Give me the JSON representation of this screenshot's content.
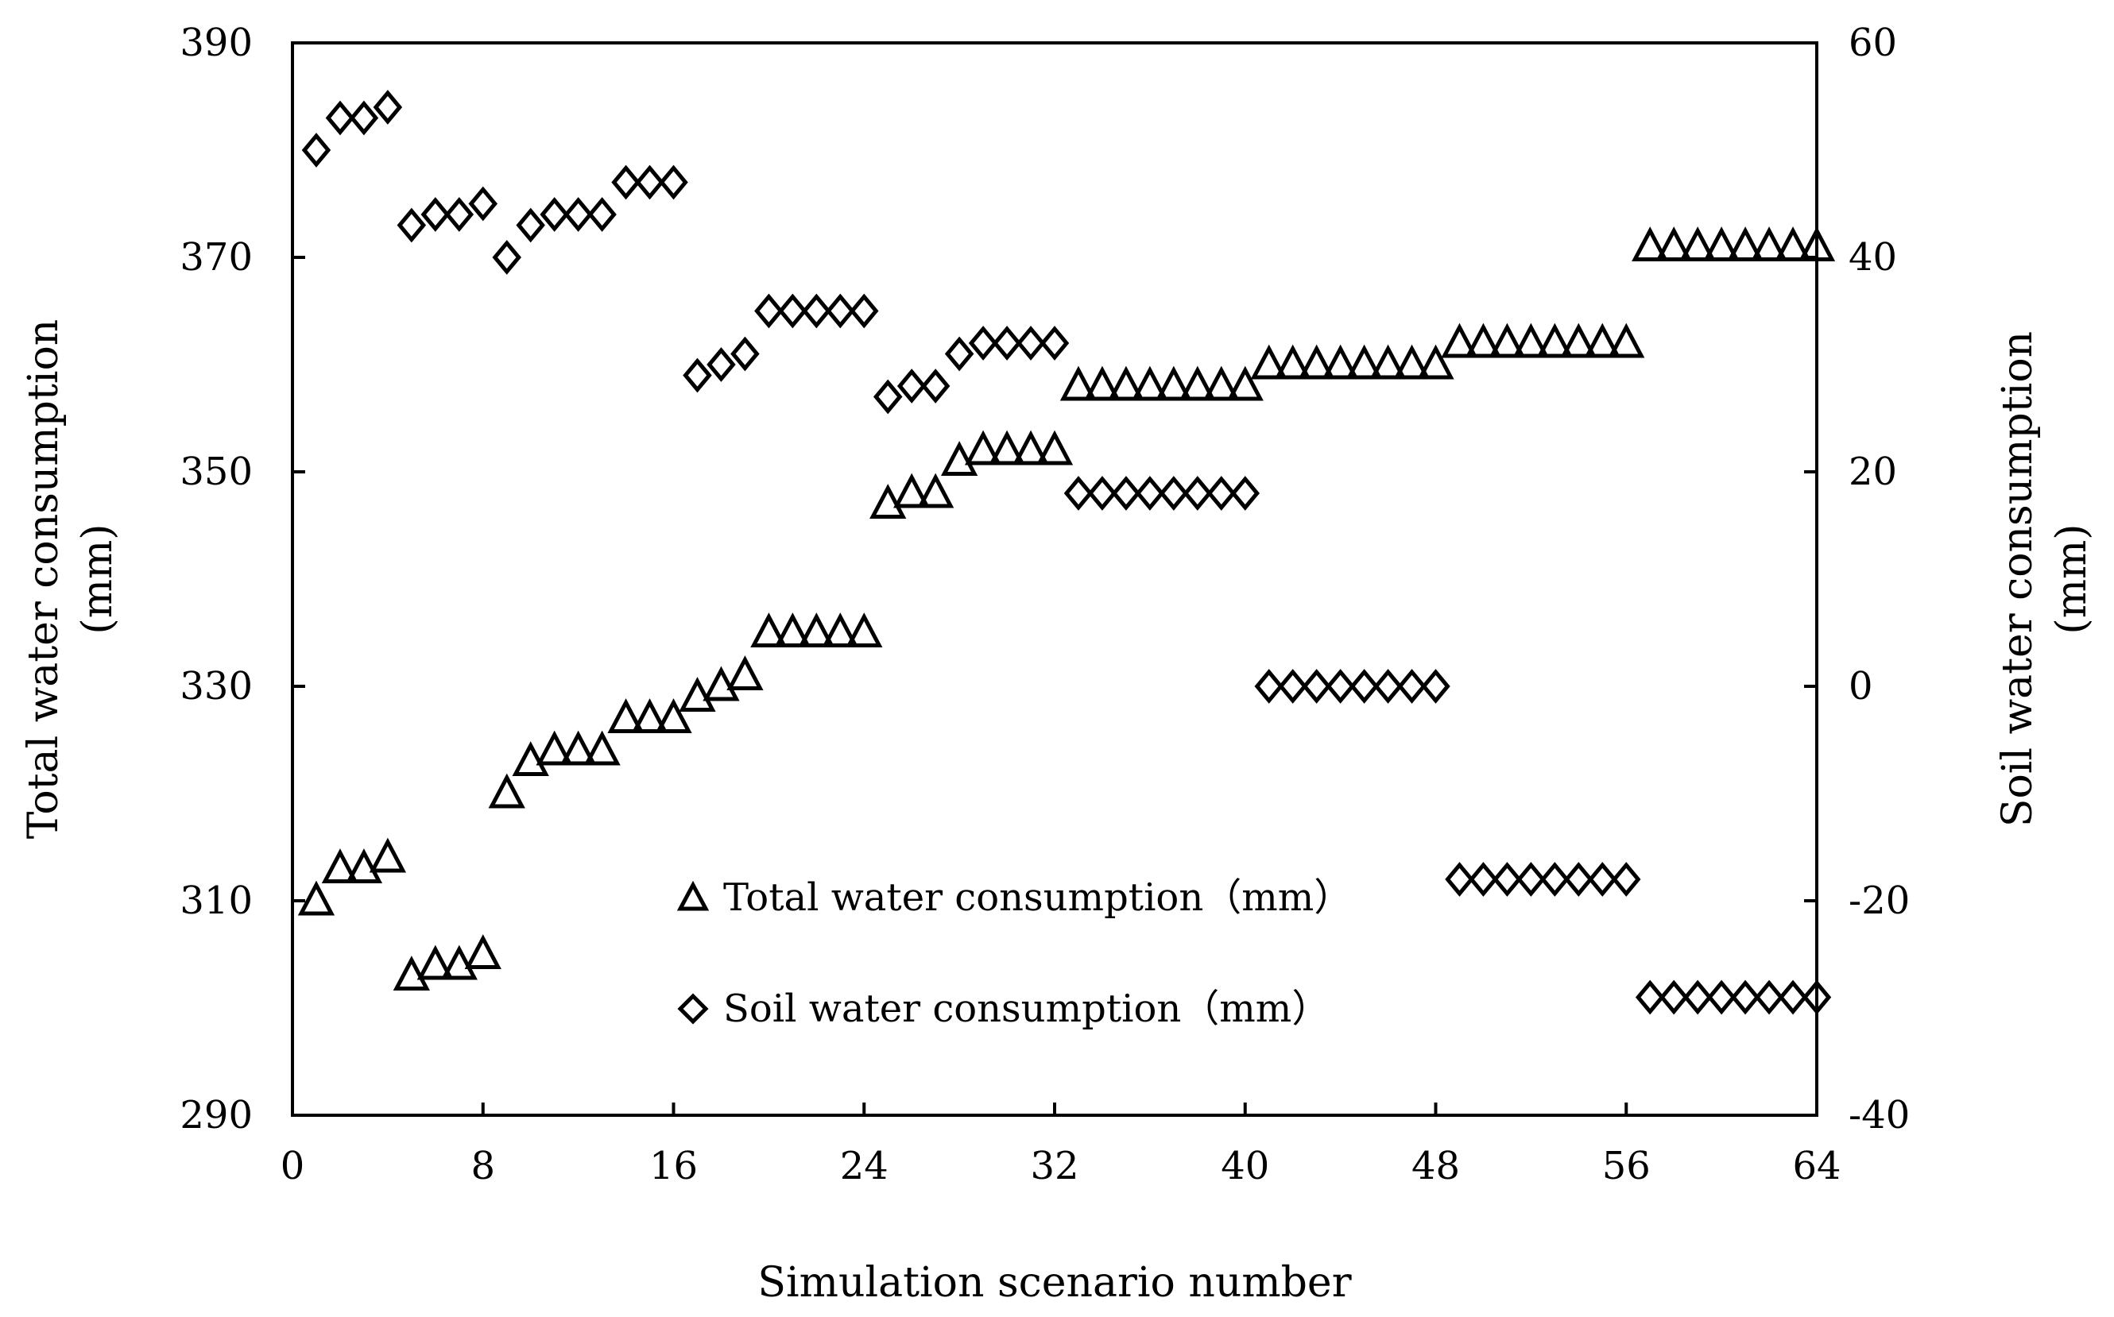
{
  "chart_data": {
    "type": "scatter",
    "title": "",
    "xlabel": "Simulation scenario number",
    "ylabel_left": [
      "Total water consumption",
      "(mm)"
    ],
    "ylabel_right": [
      "Soil water consumption",
      "(mm)"
    ],
    "xlim": [
      0,
      64
    ],
    "ylim_left": [
      290,
      390
    ],
    "ylim_right": [
      -40,
      60
    ],
    "x_ticks": [
      0,
      8,
      16,
      24,
      32,
      40,
      48,
      56,
      64
    ],
    "y_left_ticks": [
      290,
      310,
      330,
      350,
      370,
      390
    ],
    "y_right_ticks": [
      -40,
      -20,
      0,
      20,
      40,
      60
    ],
    "grid": false,
    "legend_position": "center-left-bottom",
    "series": [
      {
        "name": "Total water consumption（mm）",
        "marker": "triangle",
        "axis": "left",
        "x": [
          1,
          2,
          3,
          4,
          5,
          6,
          7,
          8,
          9,
          10,
          11,
          12,
          13,
          14,
          15,
          16,
          17,
          18,
          19,
          20,
          21,
          22,
          23,
          24,
          25,
          26,
          27,
          28,
          29,
          30,
          31,
          32,
          33,
          34,
          35,
          36,
          37,
          38,
          39,
          40,
          41,
          42,
          43,
          44,
          45,
          46,
          47,
          48,
          49,
          50,
          51,
          52,
          53,
          54,
          55,
          56,
          57,
          58,
          59,
          60,
          61,
          62,
          63,
          64
        ],
        "values": [
          310,
          313,
          313,
          314,
          303,
          304,
          304,
          305,
          320,
          323,
          324,
          324,
          324,
          327,
          327,
          327,
          329,
          330,
          331,
          335,
          335,
          335,
          335,
          335,
          347,
          348,
          348,
          351,
          352,
          352,
          352,
          352,
          358,
          358,
          358,
          358,
          358,
          358,
          358,
          358,
          360,
          360,
          360,
          360,
          360,
          360,
          360,
          360,
          362,
          362,
          362,
          362,
          362,
          362,
          362,
          362,
          371,
          371,
          371,
          371,
          371,
          371,
          371,
          371
        ]
      },
      {
        "name": "Soil water consumption（mm）",
        "marker": "diamond",
        "axis": "right",
        "x": [
          1,
          2,
          3,
          4,
          5,
          6,
          7,
          8,
          9,
          10,
          11,
          12,
          13,
          14,
          15,
          16,
          17,
          18,
          19,
          20,
          21,
          22,
          23,
          24,
          25,
          26,
          27,
          28,
          29,
          30,
          31,
          32,
          33,
          34,
          35,
          36,
          37,
          38,
          39,
          40,
          41,
          42,
          43,
          44,
          45,
          46,
          47,
          48,
          49,
          50,
          51,
          52,
          53,
          54,
          55,
          56,
          57,
          58,
          59,
          60,
          61,
          62,
          63,
          64
        ],
        "values": [
          50,
          53,
          53,
          54,
          43,
          44,
          44,
          45,
          40,
          43,
          44,
          44,
          44,
          47,
          47,
          47,
          29,
          30,
          31,
          35,
          35,
          35,
          35,
          35,
          27,
          28,
          28,
          31,
          32,
          32,
          32,
          32,
          18,
          18,
          18,
          18,
          18,
          18,
          18,
          18,
          0,
          0,
          0,
          0,
          0,
          0,
          0,
          0,
          -18,
          -18,
          -18,
          -18,
          -18,
          -18,
          -18,
          -18,
          -29,
          -29,
          -29,
          -29,
          -29,
          -29,
          -29,
          -29
        ]
      }
    ]
  }
}
